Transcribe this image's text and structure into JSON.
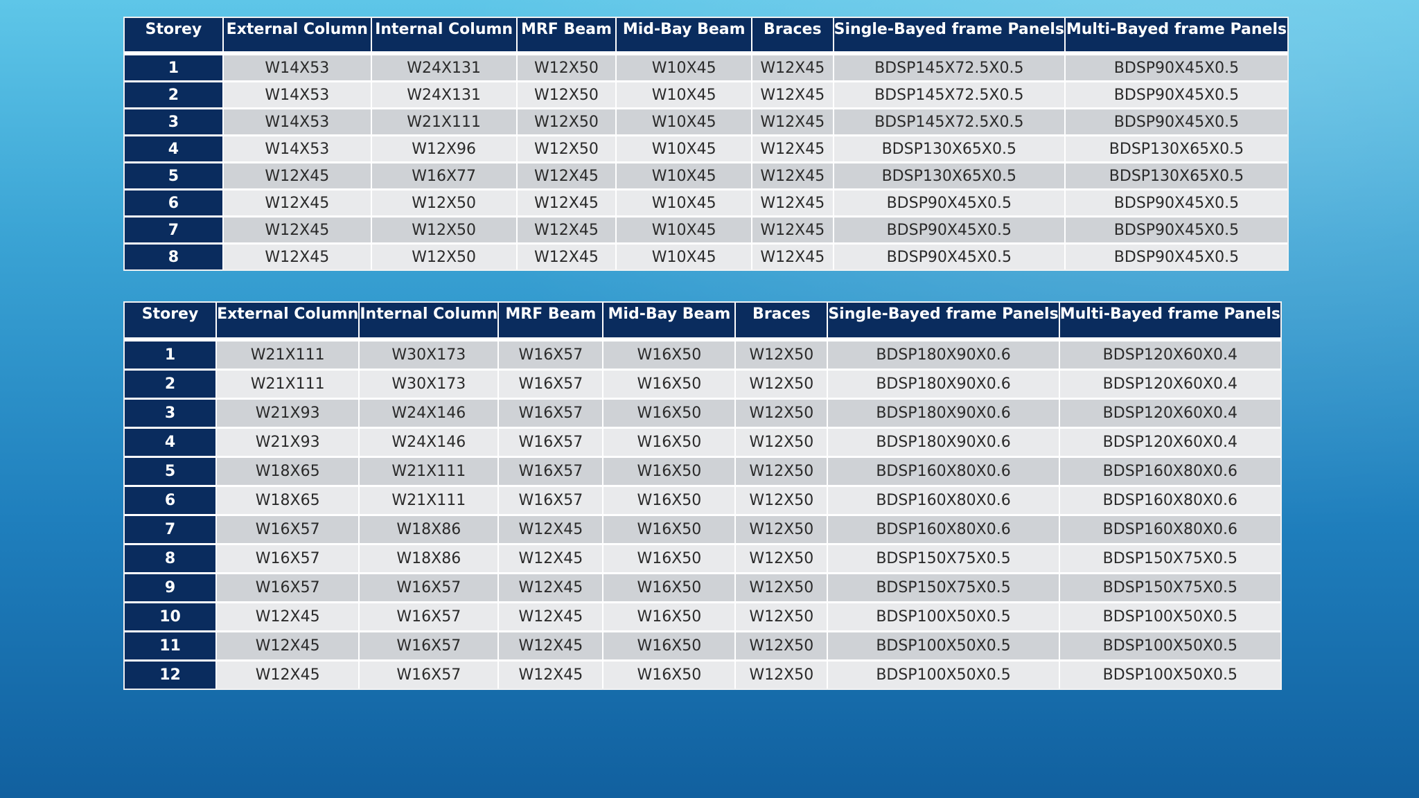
{
  "table1": {
    "headers": [
      "Storey",
      "External Column",
      "Internal Column",
      "MRF Beam",
      "Mid-Bay Beam",
      "Braces",
      "Single-Bayed frame Panels",
      "Multi-Bayed frame Panels"
    ],
    "rows": [
      [
        "1",
        "W14X53",
        "W24X131",
        "W12X50",
        "W10X45",
        "W12X45",
        "BDSP145X72.5X0.5",
        "BDSP90X45X0.5"
      ],
      [
        "2",
        "W14X53",
        "W24X131",
        "W12X50",
        "W10X45",
        "W12X45",
        "BDSP145X72.5X0.5",
        "BDSP90X45X0.5"
      ],
      [
        "3",
        "W14X53",
        "W21X111",
        "W12X50",
        "W10X45",
        "W12X45",
        "BDSP145X72.5X0.5",
        "BDSP90X45X0.5"
      ],
      [
        "4",
        "W14X53",
        "W12X96",
        "W12X50",
        "W10X45",
        "W12X45",
        "BDSP130X65X0.5",
        "BDSP130X65X0.5"
      ],
      [
        "5",
        "W12X45",
        "W16X77",
        "W12X45",
        "W10X45",
        "W12X45",
        "BDSP130X65X0.5",
        "BDSP130X65X0.5"
      ],
      [
        "6",
        "W12X45",
        "W12X50",
        "W12X45",
        "W10X45",
        "W12X45",
        "BDSP90X45X0.5",
        "BDSP90X45X0.5"
      ],
      [
        "7",
        "W12X45",
        "W12X50",
        "W12X45",
        "W10X45",
        "W12X45",
        "BDSP90X45X0.5",
        "BDSP90X45X0.5"
      ],
      [
        "8",
        "W12X45",
        "W12X50",
        "W12X45",
        "W10X45",
        "W12X45",
        "BDSP90X45X0.5",
        "BDSP90X45X0.5"
      ]
    ]
  },
  "table2": {
    "headers": [
      "Storey",
      "External Column",
      "Internal Column",
      "MRF Beam",
      "Mid-Bay Beam",
      "Braces",
      "Single-Bayed frame Panels",
      "Multi-Bayed frame Panels"
    ],
    "rows": [
      [
        "1",
        "W21X111",
        "W30X173",
        "W16X57",
        "W16X50",
        "W12X50",
        "BDSP180X90X0.6",
        "BDSP120X60X0.4"
      ],
      [
        "2",
        "W21X111",
        "W30X173",
        "W16X57",
        "W16X50",
        "W12X50",
        "BDSP180X90X0.6",
        "BDSP120X60X0.4"
      ],
      [
        "3",
        "W21X93",
        "W24X146",
        "W16X57",
        "W16X50",
        "W12X50",
        "BDSP180X90X0.6",
        "BDSP120X60X0.4"
      ],
      [
        "4",
        "W21X93",
        "W24X146",
        "W16X57",
        "W16X50",
        "W12X50",
        "BDSP180X90X0.6",
        "BDSP120X60X0.4"
      ],
      [
        "5",
        "W18X65",
        "W21X111",
        "W16X57",
        "W16X50",
        "W12X50",
        "BDSP160X80X0.6",
        "BDSP160X80X0.6"
      ],
      [
        "6",
        "W18X65",
        "W21X111",
        "W16X57",
        "W16X50",
        "W12X50",
        "BDSP160X80X0.6",
        "BDSP160X80X0.6"
      ],
      [
        "7",
        "W16X57",
        "W18X86",
        "W12X45",
        "W16X50",
        "W12X50",
        "BDSP160X80X0.6",
        "BDSP160X80X0.6"
      ],
      [
        "8",
        "W16X57",
        "W18X86",
        "W12X45",
        "W16X50",
        "W12X50",
        "BDSP150X75X0.5",
        "BDSP150X75X0.5"
      ],
      [
        "9",
        "W16X57",
        "W16X57",
        "W12X45",
        "W16X50",
        "W12X50",
        "BDSP150X75X0.5",
        "BDSP150X75X0.5"
      ],
      [
        "10",
        "W12X45",
        "W16X57",
        "W12X45",
        "W16X50",
        "W12X50",
        "BDSP100X50X0.5",
        "BDSP100X50X0.5"
      ],
      [
        "11",
        "W12X45",
        "W16X57",
        "W12X45",
        "W16X50",
        "W12X50",
        "BDSP100X50X0.5",
        "BDSP100X50X0.5"
      ],
      [
        "12",
        "W12X45",
        "W16X57",
        "W12X45",
        "W16X50",
        "W12X50",
        "BDSP100X50X0.5",
        "BDSP100X50X0.5"
      ]
    ]
  },
  "colors": {
    "header_bg": "#0a2c5e",
    "row_odd": "#cfd2d6",
    "row_even": "#e9eaec",
    "grid_line": "#ffffff"
  }
}
